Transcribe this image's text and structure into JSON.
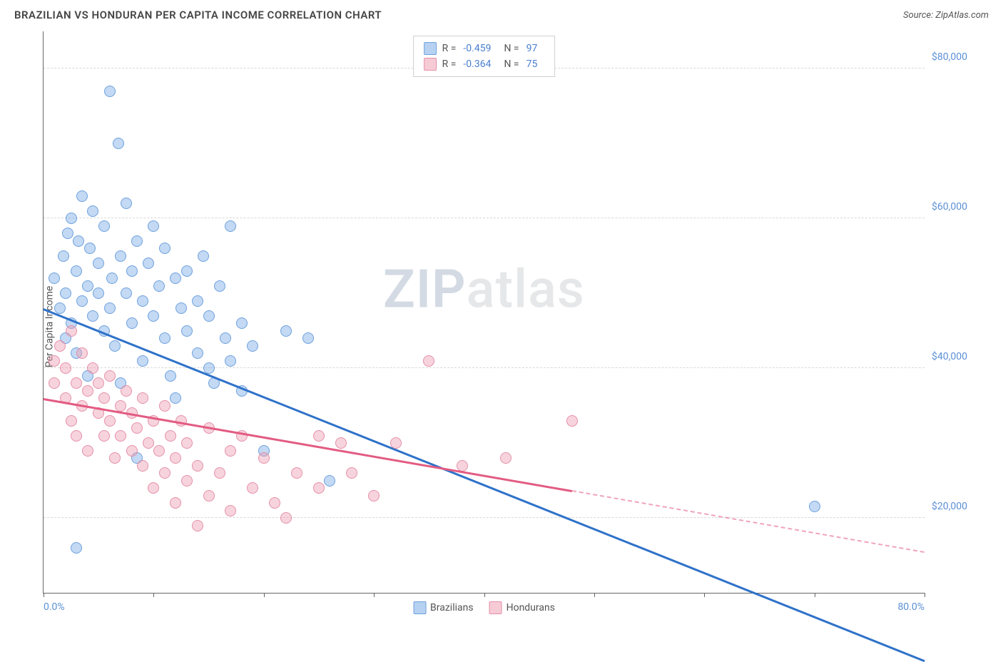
{
  "title": "BRAZILIAN VS HONDURAN PER CAPITA INCOME CORRELATION CHART",
  "source": "Source: ZipAtlas.com",
  "ylabel": "Per Capita Income",
  "watermark": {
    "part1": "ZIP",
    "part2": "atlas"
  },
  "chart": {
    "type": "scatter",
    "background_color": "#ffffff",
    "grid_color": "#d8d8d8",
    "axis_color": "#666666",
    "xlim": [
      0,
      80
    ],
    "ylim": [
      10000,
      85000
    ],
    "xticks": [
      0,
      10,
      20,
      30,
      40,
      50,
      60,
      70,
      80
    ],
    "xtick_labels": {
      "0": "0.0%",
      "80": "80.0%"
    },
    "yticks": [
      20000,
      40000,
      60000,
      80000
    ],
    "ytick_labels": [
      "$20,000",
      "$40,000",
      "$60,000",
      "$80,000"
    ],
    "tick_label_color": "#5b8fd6",
    "marker_radius": 8,
    "marker_stroke_width": 1.2,
    "series": [
      {
        "name": "Brazilians",
        "fill": "rgba(122,171,230,0.45)",
        "stroke": "#6fa1dd",
        "trend_color": "#2f72c9",
        "trend": {
          "x1": 0,
          "y1": 48000,
          "x2": 80,
          "y2": 1000,
          "solid_until_x": 80
        },
        "R": "-0.459",
        "N": "97",
        "points": [
          [
            1,
            52000
          ],
          [
            1.5,
            48000
          ],
          [
            1.8,
            55000
          ],
          [
            2,
            50000
          ],
          [
            2,
            44000
          ],
          [
            2.2,
            58000
          ],
          [
            2.5,
            46000
          ],
          [
            2.5,
            60000
          ],
          [
            3,
            53000
          ],
          [
            3,
            42000
          ],
          [
            3,
            16000
          ],
          [
            3.2,
            57000
          ],
          [
            3.5,
            49000
          ],
          [
            3.5,
            63000
          ],
          [
            4,
            51000
          ],
          [
            4,
            39000
          ],
          [
            4.2,
            56000
          ],
          [
            4.5,
            47000
          ],
          [
            4.5,
            61000
          ],
          [
            5,
            50000
          ],
          [
            5,
            54000
          ],
          [
            5.5,
            45000
          ],
          [
            5.5,
            59000
          ],
          [
            6,
            48000
          ],
          [
            6,
            77000
          ],
          [
            6.2,
            52000
          ],
          [
            6.5,
            43000
          ],
          [
            6.8,
            70000
          ],
          [
            7,
            55000
          ],
          [
            7,
            38000
          ],
          [
            7.5,
            50000
          ],
          [
            7.5,
            62000
          ],
          [
            8,
            46000
          ],
          [
            8,
            53000
          ],
          [
            8.5,
            57000
          ],
          [
            8.5,
            28000
          ],
          [
            9,
            49000
          ],
          [
            9,
            41000
          ],
          [
            9.5,
            54000
          ],
          [
            10,
            47000
          ],
          [
            10,
            59000
          ],
          [
            10.5,
            51000
          ],
          [
            11,
            44000
          ],
          [
            11,
            56000
          ],
          [
            11.5,
            39000
          ],
          [
            12,
            52000
          ],
          [
            12,
            36000
          ],
          [
            12.5,
            48000
          ],
          [
            13,
            45000
          ],
          [
            13,
            53000
          ],
          [
            14,
            42000
          ],
          [
            14,
            49000
          ],
          [
            14.5,
            55000
          ],
          [
            15,
            40000
          ],
          [
            15,
            47000
          ],
          [
            15.5,
            38000
          ],
          [
            16,
            51000
          ],
          [
            16.5,
            44000
          ],
          [
            17,
            41000
          ],
          [
            17,
            59000
          ],
          [
            18,
            37000
          ],
          [
            18,
            46000
          ],
          [
            19,
            43000
          ],
          [
            20,
            29000
          ],
          [
            22,
            45000
          ],
          [
            24,
            44000
          ],
          [
            26,
            25000
          ],
          [
            70,
            21500
          ]
        ]
      },
      {
        "name": "Hondurans",
        "fill": "rgba(238,160,180,0.45)",
        "stroke": "#e58fa8",
        "trend_color": "#e35b82",
        "trend": {
          "x1": 0,
          "y1": 36000,
          "x2": 80,
          "y2": 15500,
          "solid_until_x": 48
        },
        "R": "-0.364",
        "N": "75",
        "points": [
          [
            1,
            41000
          ],
          [
            1,
            38000
          ],
          [
            1.5,
            43000
          ],
          [
            2,
            36000
          ],
          [
            2,
            40000
          ],
          [
            2.5,
            33000
          ],
          [
            2.5,
            45000
          ],
          [
            3,
            38000
          ],
          [
            3,
            31000
          ],
          [
            3.5,
            42000
          ],
          [
            3.5,
            35000
          ],
          [
            4,
            37000
          ],
          [
            4,
            29000
          ],
          [
            4.5,
            40000
          ],
          [
            5,
            34000
          ],
          [
            5,
            38000
          ],
          [
            5.5,
            31000
          ],
          [
            5.5,
            36000
          ],
          [
            6,
            33000
          ],
          [
            6,
            39000
          ],
          [
            6.5,
            28000
          ],
          [
            7,
            35000
          ],
          [
            7,
            31000
          ],
          [
            7.5,
            37000
          ],
          [
            8,
            29000
          ],
          [
            8,
            34000
          ],
          [
            8.5,
            32000
          ],
          [
            9,
            27000
          ],
          [
            9,
            36000
          ],
          [
            9.5,
            30000
          ],
          [
            10,
            33000
          ],
          [
            10,
            24000
          ],
          [
            10.5,
            29000
          ],
          [
            11,
            35000
          ],
          [
            11,
            26000
          ],
          [
            11.5,
            31000
          ],
          [
            12,
            28000
          ],
          [
            12,
            22000
          ],
          [
            12.5,
            33000
          ],
          [
            13,
            25000
          ],
          [
            13,
            30000
          ],
          [
            14,
            27000
          ],
          [
            14,
            19000
          ],
          [
            15,
            23000
          ],
          [
            15,
            32000
          ],
          [
            16,
            26000
          ],
          [
            17,
            29000
          ],
          [
            17,
            21000
          ],
          [
            18,
            31000
          ],
          [
            19,
            24000
          ],
          [
            20,
            28000
          ],
          [
            21,
            22000
          ],
          [
            22,
            20000
          ],
          [
            23,
            26000
          ],
          [
            25,
            24000
          ],
          [
            25,
            31000
          ],
          [
            27,
            30000
          ],
          [
            28,
            26000
          ],
          [
            30,
            23000
          ],
          [
            32,
            30000
          ],
          [
            35,
            41000
          ],
          [
            38,
            27000
          ],
          [
            42,
            28000
          ],
          [
            48,
            33000
          ]
        ]
      }
    ]
  },
  "legend_top": [
    {
      "swatch_fill": "rgba(122,171,230,0.55)",
      "swatch_stroke": "#6fa1dd",
      "R": "-0.459",
      "N": "97"
    },
    {
      "swatch_fill": "rgba(238,160,180,0.55)",
      "swatch_stroke": "#e58fa8",
      "R": "-0.364",
      "N": "75"
    }
  ],
  "legend_bottom": [
    {
      "label": "Brazilians",
      "swatch_fill": "rgba(122,171,230,0.55)",
      "swatch_stroke": "#6fa1dd"
    },
    {
      "label": "Hondurans",
      "swatch_fill": "rgba(238,160,180,0.55)",
      "swatch_stroke": "#e58fa8"
    }
  ]
}
